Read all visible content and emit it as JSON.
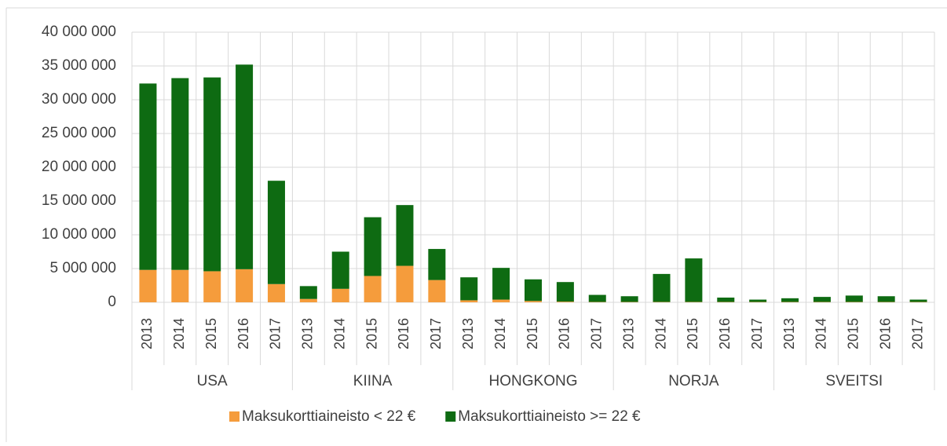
{
  "chart_data": {
    "type": "stacked_bar",
    "groups": [
      "USA",
      "KIINA",
      "HONGKONG",
      "NORJA",
      "SVEITSI"
    ],
    "categories": [
      "2013",
      "2014",
      "2015",
      "2016",
      "2017",
      "2013",
      "2014",
      "2015",
      "2016",
      "2017",
      "2013",
      "2014",
      "2015",
      "2016",
      "2017",
      "2013",
      "2014",
      "2015",
      "2016",
      "2017",
      "2013",
      "2014",
      "2015",
      "2016",
      "2017"
    ],
    "series": [
      {
        "name": "Maksukorttiaineisto < 22 €",
        "color": "#f59c3c",
        "values": [
          4800000,
          4800000,
          4600000,
          4900000,
          2700000,
          500000,
          2000000,
          3900000,
          5400000,
          3300000,
          300000,
          400000,
          200000,
          100000,
          50000,
          50000,
          50000,
          50000,
          50000,
          50000,
          50000,
          50000,
          50000,
          50000,
          50000
        ]
      },
      {
        "name": "Maksukorttiaineisto >= 22 €",
        "color": "#0e6b12",
        "values": [
          27600000,
          28400000,
          28700000,
          30300000,
          15300000,
          1900000,
          5500000,
          8700000,
          9000000,
          4600000,
          3400000,
          4700000,
          3200000,
          2900000,
          1050000,
          850000,
          4150000,
          6450000,
          650000,
          350000,
          550000,
          750000,
          950000,
          850000,
          350000
        ]
      }
    ],
    "ylim": [
      0,
      40000000
    ],
    "yticks": [
      0,
      {
        "value": 5000000,
        "label": "5 000 000"
      },
      {
        "value": 10000000,
        "label": "10 000 000"
      },
      {
        "value": 15000000,
        "label": "15 000 000"
      },
      {
        "value": 20000000,
        "label": "20 000 000"
      },
      {
        "value": 25000000,
        "label": "25 000 000"
      },
      {
        "value": 30000000,
        "label": "30 000 000"
      },
      {
        "value": 35000000,
        "label": "35 000 000"
      },
      {
        "value": 40000000,
        "label": "40 000 000"
      }
    ],
    "grid": true
  }
}
